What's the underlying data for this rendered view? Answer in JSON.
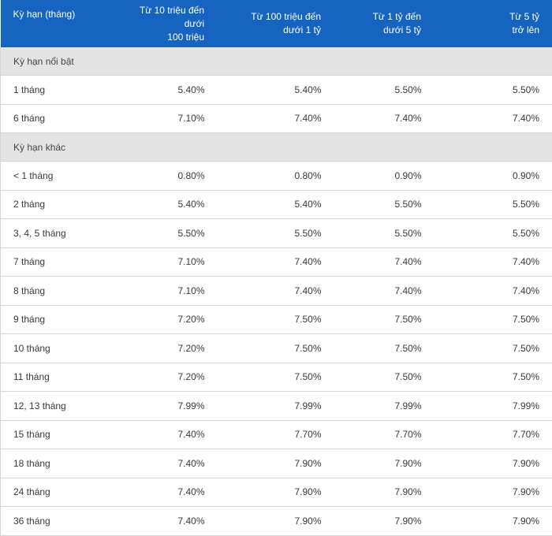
{
  "table": {
    "headers": [
      [
        "Kỳ hạn (tháng)"
      ],
      [
        "Từ 10 triệu đến dưới",
        "100 triệu"
      ],
      [
        "Từ 100 triệu đến",
        "dưới 1 tỷ"
      ],
      [
        "Từ 1 tỷ đến",
        "dưới 5 tỷ"
      ],
      [
        "Từ 5 tỷ",
        "trở lên"
      ]
    ],
    "groups": [
      {
        "title": "Kỳ hạn nổi bật",
        "rows": [
          [
            "1 tháng",
            "5.40%",
            "5.40%",
            "5.50%",
            "5.50%"
          ],
          [
            "6 tháng",
            "7.10%",
            "7.40%",
            "7.40%",
            "7.40%"
          ]
        ]
      },
      {
        "title": "Kỳ hạn khác",
        "rows": [
          [
            "< 1 tháng",
            "0.80%",
            "0.80%",
            "0.90%",
            "0.90%"
          ],
          [
            "2 tháng",
            "5.40%",
            "5.40%",
            "5.50%",
            "5.50%"
          ],
          [
            "3, 4, 5 tháng",
            "5.50%",
            "5.50%",
            "5.50%",
            "5.50%"
          ],
          [
            "7 tháng",
            "7.10%",
            "7.40%",
            "7.40%",
            "7.40%"
          ],
          [
            "8 tháng",
            "7.10%",
            "7.40%",
            "7.40%",
            "7.40%"
          ],
          [
            "9 tháng",
            "7.20%",
            "7.50%",
            "7.50%",
            "7.50%"
          ],
          [
            "10 tháng",
            "7.20%",
            "7.50%",
            "7.50%",
            "7.50%"
          ],
          [
            "11 tháng",
            "7.20%",
            "7.50%",
            "7.50%",
            "7.50%"
          ],
          [
            "12, 13 tháng",
            "7.99%",
            "7.99%",
            "7.99%",
            "7.99%"
          ],
          [
            "15 tháng",
            "7.40%",
            "7.70%",
            "7.70%",
            "7.70%"
          ],
          [
            "18 tháng",
            "7.40%",
            "7.90%",
            "7.90%",
            "7.90%"
          ],
          [
            "24 tháng",
            "7.40%",
            "7.90%",
            "7.90%",
            "7.90%"
          ],
          [
            "36 tháng",
            "7.40%",
            "7.90%",
            "7.90%",
            "7.90%"
          ]
        ]
      }
    ],
    "colors": {
      "header_bg": "#1565c0",
      "group_bg": "#e4e4e4",
      "border": "#d6d6d6"
    }
  }
}
